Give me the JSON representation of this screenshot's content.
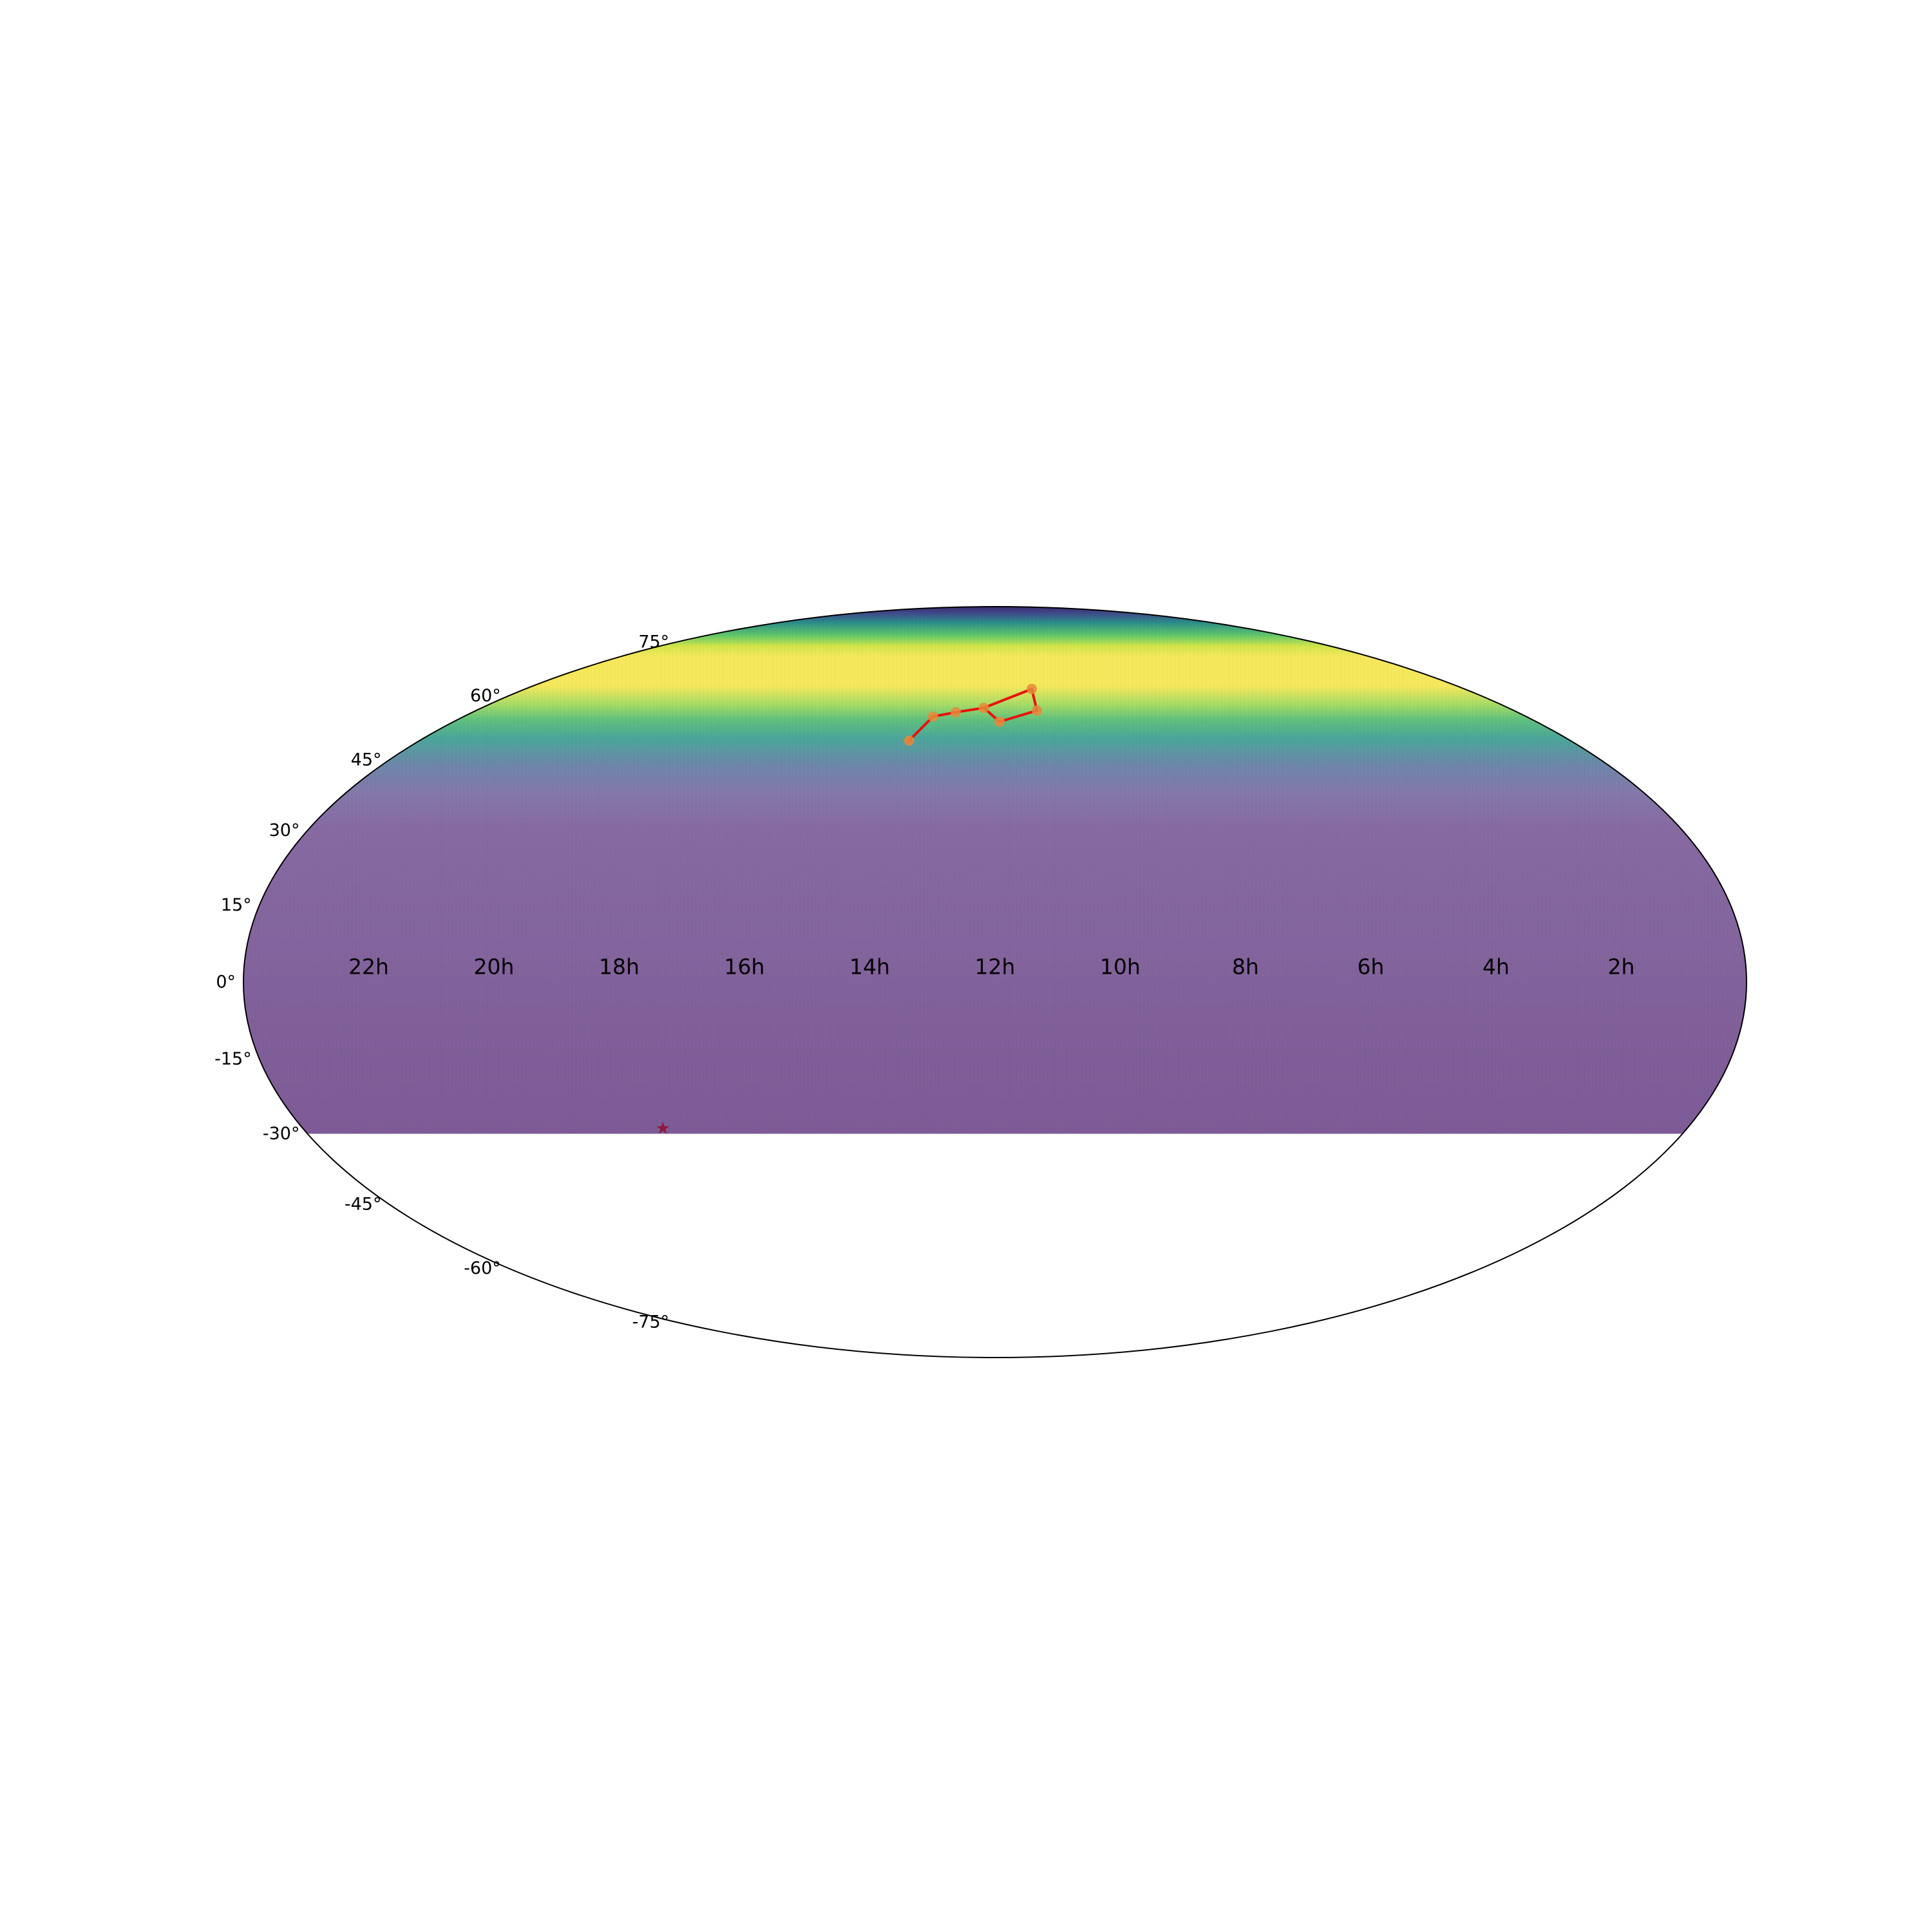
{
  "map": {
    "projection": "mollweide",
    "ra_direction": "decreasing to the right",
    "colormap": "viridis",
    "coverage_dec_min": -30
  },
  "ra_ticks": [
    "22h",
    "20h",
    "18h",
    "16h",
    "14h",
    "12h",
    "10h",
    "8h",
    "6h",
    "4h",
    "2h"
  ],
  "dec_ticks": [
    {
      "value": 75,
      "label": "75°"
    },
    {
      "value": 60,
      "label": "60°"
    },
    {
      "value": 45,
      "label": "45°"
    },
    {
      "value": 30,
      "label": "30°"
    },
    {
      "value": 15,
      "label": "15°"
    },
    {
      "value": 0,
      "label": "0°"
    },
    {
      "value": -15,
      "label": "-15°"
    },
    {
      "value": -30,
      "label": "-30°"
    },
    {
      "value": -45,
      "label": "-45°"
    },
    {
      "value": -60,
      "label": "-60°"
    },
    {
      "value": -75,
      "label": "-75°"
    }
  ],
  "constellation": {
    "line_color": "#e8120c",
    "marker_color": "#e8883a",
    "stars": [
      {
        "ra_h": 11.06,
        "dec": 61.75
      },
      {
        "ra_h": 11.03,
        "dec": 56.38
      },
      {
        "ra_h": 11.9,
        "dec": 53.69
      },
      {
        "ra_h": 12.26,
        "dec": 57.03
      },
      {
        "ra_h": 12.9,
        "dec": 55.96
      },
      {
        "ra_h": 13.4,
        "dec": 54.93
      },
      {
        "ra_h": 13.79,
        "dec": 49.31
      }
    ],
    "segments": [
      [
        0,
        1
      ],
      [
        1,
        2
      ],
      [
        2,
        3
      ],
      [
        3,
        0
      ],
      [
        3,
        4
      ],
      [
        4,
        5
      ],
      [
        5,
        6
      ]
    ]
  },
  "marker": {
    "ra_h": 17.76,
    "dec": -28.94,
    "symbol": "★",
    "color": "#8b1a3a"
  }
}
